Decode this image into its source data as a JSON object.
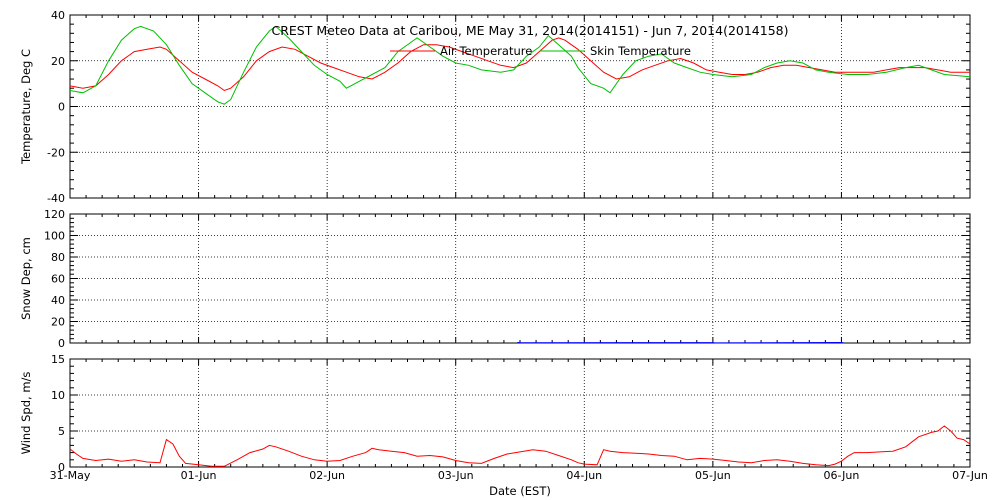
{
  "chart_data": {
    "type": "line",
    "title": "CREST Meteo Data at Caribou, ME   May 31, 2014(2014151) - Jun  7, 2014(2014158)",
    "xlabel": "Date (EST)",
    "x_ticks": [
      "31-May",
      "01-Jun",
      "02-Jun",
      "03-Jun",
      "04-Jun",
      "05-Jun",
      "06-Jun",
      "07-Jun"
    ],
    "x_range_days": [
      0,
      7
    ],
    "grid": true,
    "legend_placement": "top",
    "panels": [
      {
        "ylabel": "Temperature, Deg C",
        "ylim": [
          -40,
          40
        ],
        "yticks": [
          "40",
          "20",
          "0",
          "-20",
          "-40"
        ],
        "series": [
          {
            "name": "Air Temperature",
            "color": "#ff0000",
            "points": [
              [
                0,
                9
              ],
              [
                0.1,
                8
              ],
              [
                0.2,
                9
              ],
              [
                0.3,
                14
              ],
              [
                0.4,
                20
              ],
              [
                0.5,
                24
              ],
              [
                0.6,
                25
              ],
              [
                0.7,
                26
              ],
              [
                0.75,
                25
              ],
              [
                0.85,
                20
              ],
              [
                0.95,
                15
              ],
              [
                1.05,
                12
              ],
              [
                1.15,
                9
              ],
              [
                1.2,
                7
              ],
              [
                1.25,
                8
              ],
              [
                1.35,
                13
              ],
              [
                1.45,
                20
              ],
              [
                1.55,
                24
              ],
              [
                1.65,
                26
              ],
              [
                1.75,
                25
              ],
              [
                1.85,
                22
              ],
              [
                1.95,
                19
              ],
              [
                2.05,
                17
              ],
              [
                2.15,
                15
              ],
              [
                2.25,
                13
              ],
              [
                2.35,
                12
              ],
              [
                2.45,
                15
              ],
              [
                2.55,
                19
              ],
              [
                2.65,
                24
              ],
              [
                2.75,
                27
              ],
              [
                2.85,
                27
              ],
              [
                2.95,
                26
              ],
              [
                3.05,
                24
              ],
              [
                3.15,
                22
              ],
              [
                3.25,
                20
              ],
              [
                3.35,
                18
              ],
              [
                3.45,
                17
              ],
              [
                3.55,
                19
              ],
              [
                3.65,
                24
              ],
              [
                3.75,
                29
              ],
              [
                3.8,
                30
              ],
              [
                3.85,
                29
              ],
              [
                3.95,
                25
              ],
              [
                4.05,
                20
              ],
              [
                4.15,
                15
              ],
              [
                4.25,
                12
              ],
              [
                4.35,
                13
              ],
              [
                4.45,
                16
              ],
              [
                4.55,
                18
              ],
              [
                4.65,
                20
              ],
              [
                4.75,
                21
              ],
              [
                4.85,
                19
              ],
              [
                4.95,
                16
              ],
              [
                5.05,
                15
              ],
              [
                5.15,
                14
              ],
              [
                5.25,
                14
              ],
              [
                5.35,
                15
              ],
              [
                5.45,
                17
              ],
              [
                5.55,
                18
              ],
              [
                5.65,
                18
              ],
              [
                5.75,
                17
              ],
              [
                5.85,
                16
              ],
              [
                5.95,
                15
              ],
              [
                6.05,
                15
              ],
              [
                6.15,
                15
              ],
              [
                6.25,
                15
              ],
              [
                6.35,
                16
              ],
              [
                6.45,
                17
              ],
              [
                6.55,
                17
              ],
              [
                6.65,
                17
              ],
              [
                6.75,
                16
              ],
              [
                6.85,
                15
              ],
              [
                7,
                15
              ]
            ]
          },
          {
            "name": "Skin Temperature",
            "color": "#00c000",
            "points": [
              [
                0,
                7
              ],
              [
                0.1,
                6
              ],
              [
                0.2,
                9
              ],
              [
                0.3,
                20
              ],
              [
                0.4,
                29
              ],
              [
                0.5,
                34
              ],
              [
                0.55,
                35
              ],
              [
                0.65,
                33
              ],
              [
                0.75,
                27
              ],
              [
                0.85,
                18
              ],
              [
                0.95,
                10
              ],
              [
                1.05,
                6
              ],
              [
                1.15,
                2
              ],
              [
                1.2,
                1
              ],
              [
                1.25,
                3
              ],
              [
                1.35,
                15
              ],
              [
                1.45,
                26
              ],
              [
                1.55,
                33
              ],
              [
                1.6,
                35
              ],
              [
                1.7,
                30
              ],
              [
                1.8,
                24
              ],
              [
                1.9,
                18
              ],
              [
                2.0,
                14
              ],
              [
                2.1,
                11
              ],
              [
                2.15,
                8
              ],
              [
                2.25,
                11
              ],
              [
                2.35,
                14
              ],
              [
                2.45,
                17
              ],
              [
                2.55,
                24
              ],
              [
                2.65,
                28
              ],
              [
                2.7,
                30
              ],
              [
                2.8,
                26
              ],
              [
                2.9,
                22
              ],
              [
                3.0,
                19
              ],
              [
                3.1,
                18
              ],
              [
                3.2,
                16
              ],
              [
                3.35,
                15
              ],
              [
                3.45,
                16
              ],
              [
                3.55,
                22
              ],
              [
                3.65,
                26
              ],
              [
                3.72,
                31
              ],
              [
                3.8,
                27
              ],
              [
                3.9,
                22
              ],
              [
                3.95,
                17
              ],
              [
                4.05,
                10
              ],
              [
                4.15,
                8
              ],
              [
                4.2,
                6
              ],
              [
                4.3,
                14
              ],
              [
                4.4,
                20
              ],
              [
                4.5,
                22
              ],
              [
                4.6,
                23
              ],
              [
                4.7,
                19
              ],
              [
                4.8,
                17
              ],
              [
                4.9,
                15
              ],
              [
                5.0,
                14
              ],
              [
                5.15,
                13
              ],
              [
                5.3,
                14
              ],
              [
                5.4,
                17
              ],
              [
                5.5,
                19
              ],
              [
                5.6,
                20
              ],
              [
                5.7,
                19
              ],
              [
                5.8,
                16
              ],
              [
                5.9,
                15
              ],
              [
                6.05,
                14
              ],
              [
                6.2,
                14
              ],
              [
                6.35,
                15
              ],
              [
                6.5,
                17
              ],
              [
                6.6,
                18
              ],
              [
                6.7,
                16
              ],
              [
                6.8,
                14
              ],
              [
                7,
                13
              ]
            ]
          }
        ]
      },
      {
        "ylabel": "Snow Dep, cm",
        "ylim": [
          0,
          120
        ],
        "yticks": [
          "120",
          "100",
          "80",
          "60",
          "40",
          "20",
          "0"
        ],
        "series": [
          {
            "name": "",
            "color": "#0000ff",
            "points": [
              [
                3.48,
                0.6
              ],
              [
                3.5,
                0.2
              ],
              [
                5.0,
                0.4
              ],
              [
                5.02,
                0.1
              ],
              [
                6.0,
                0.5
              ],
              [
                6.02,
                0.1
              ]
            ]
          }
        ]
      },
      {
        "ylabel": "Wind Spd, m/s",
        "ylim": [
          0,
          15
        ],
        "yticks": [
          "15",
          "10",
          "5",
          "0"
        ],
        "series": [
          {
            "name": "",
            "color": "#ff0000",
            "points": [
              [
                0,
                2.5
              ],
              [
                0.05,
                1.8
              ],
              [
                0.1,
                1.2
              ],
              [
                0.2,
                0.9
              ],
              [
                0.3,
                1.1
              ],
              [
                0.4,
                0.8
              ],
              [
                0.5,
                1.0
              ],
              [
                0.6,
                0.7
              ],
              [
                0.7,
                0.6
              ],
              [
                0.75,
                3.8
              ],
              [
                0.8,
                3.2
              ],
              [
                0.85,
                1.5
              ],
              [
                0.9,
                0.5
              ],
              [
                1.0,
                0.3
              ],
              [
                1.1,
                0.1
              ],
              [
                1.2,
                0.1
              ],
              [
                1.3,
                1.0
              ],
              [
                1.4,
                2.0
              ],
              [
                1.5,
                2.5
              ],
              [
                1.55,
                3.0
              ],
              [
                1.6,
                2.8
              ],
              [
                1.7,
                2.2
              ],
              [
                1.8,
                1.5
              ],
              [
                1.9,
                1.0
              ],
              [
                2.0,
                0.8
              ],
              [
                2.1,
                0.9
              ],
              [
                2.2,
                1.5
              ],
              [
                2.3,
                2.0
              ],
              [
                2.35,
                2.6
              ],
              [
                2.4,
                2.4
              ],
              [
                2.5,
                2.2
              ],
              [
                2.6,
                2.0
              ],
              [
                2.7,
                1.5
              ],
              [
                2.8,
                1.6
              ],
              [
                2.9,
                1.4
              ],
              [
                3.0,
                0.9
              ],
              [
                3.1,
                0.6
              ],
              [
                3.2,
                0.5
              ],
              [
                3.3,
                1.2
              ],
              [
                3.4,
                1.8
              ],
              [
                3.5,
                2.1
              ],
              [
                3.6,
                2.4
              ],
              [
                3.7,
                2.2
              ],
              [
                3.8,
                1.6
              ],
              [
                3.9,
                1.0
              ],
              [
                3.95,
                0.6
              ],
              [
                4.0,
                0.4
              ],
              [
                4.1,
                0.3
              ],
              [
                4.15,
                2.4
              ],
              [
                4.2,
                2.2
              ],
              [
                4.3,
                2.0
              ],
              [
                4.4,
                1.9
              ],
              [
                4.5,
                1.8
              ],
              [
                4.6,
                1.6
              ],
              [
                4.7,
                1.5
              ],
              [
                4.8,
                1.0
              ],
              [
                4.9,
                1.2
              ],
              [
                5.0,
                1.1
              ],
              [
                5.1,
                0.9
              ],
              [
                5.2,
                0.7
              ],
              [
                5.3,
                0.6
              ],
              [
                5.4,
                0.9
              ],
              [
                5.5,
                1.0
              ],
              [
                5.6,
                0.8
              ],
              [
                5.7,
                0.5
              ],
              [
                5.8,
                0.3
              ],
              [
                5.9,
                0.2
              ],
              [
                5.95,
                0.4
              ],
              [
                6.0,
                0.8
              ],
              [
                6.05,
                1.5
              ],
              [
                6.1,
                2.0
              ],
              [
                6.2,
                2.0
              ],
              [
                6.3,
                2.1
              ],
              [
                6.4,
                2.2
              ],
              [
                6.5,
                2.8
              ],
              [
                6.55,
                3.5
              ],
              [
                6.6,
                4.2
              ],
              [
                6.7,
                4.8
              ],
              [
                6.75,
                5.0
              ],
              [
                6.8,
                5.7
              ],
              [
                6.85,
                5.0
              ],
              [
                6.9,
                4.0
              ],
              [
                6.95,
                3.8
              ],
              [
                7.0,
                3.2
              ]
            ]
          }
        ]
      }
    ]
  }
}
